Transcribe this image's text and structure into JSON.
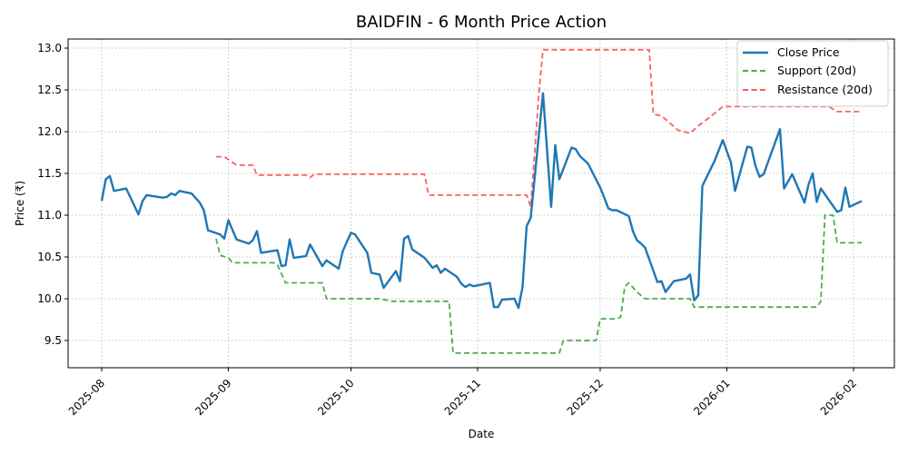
{
  "chart_data": {
    "type": "line",
    "title": "BAIDFIN - 6 Month Price Action",
    "xlabel": "Date",
    "ylabel": "Price (₹)",
    "ylim": [
      9.18,
      13.15
    ],
    "yticks": [
      9.5,
      10.0,
      10.5,
      11.0,
      11.5,
      12.0,
      12.5,
      13.0
    ],
    "ytick_labels": [
      "9.5",
      "10.0",
      "10.5",
      "11.0",
      "11.5",
      "12.0",
      "12.5",
      "13.0"
    ],
    "xtick_labels": [
      "2025-08",
      "2025-09",
      "2025-10",
      "2025-11",
      "2025-12",
      "2026-01",
      "2026-02"
    ],
    "grid": true,
    "legend_position": "upper right",
    "legend": [
      "Close Price",
      "Support (20d)",
      "Resistance (20d)"
    ],
    "series": [
      {
        "name": "Close Price",
        "color": "#1f77b4",
        "style": "solid",
        "points": [
          [
            "2025-08-01",
            11.17
          ],
          [
            "2025-08-02",
            11.43
          ],
          [
            "2025-08-03",
            11.47
          ],
          [
            "2025-08-04",
            11.29
          ],
          [
            "2025-08-07",
            11.32
          ],
          [
            "2025-08-10",
            11.01
          ],
          [
            "2025-08-11",
            11.17
          ],
          [
            "2025-08-12",
            11.24
          ],
          [
            "2025-08-16",
            11.21
          ],
          [
            "2025-08-17",
            11.22
          ],
          [
            "2025-08-18",
            11.26
          ],
          [
            "2025-08-19",
            11.24
          ],
          [
            "2025-08-20",
            11.29
          ],
          [
            "2025-08-23",
            11.26
          ],
          [
            "2025-08-25",
            11.15
          ],
          [
            "2025-08-26",
            11.06
          ],
          [
            "2025-08-27",
            10.82
          ],
          [
            "2025-08-30",
            10.77
          ],
          [
            "2025-08-31",
            10.72
          ],
          [
            "2025-09-01",
            10.94
          ],
          [
            "2025-09-03",
            10.71
          ],
          [
            "2025-09-06",
            10.66
          ],
          [
            "2025-09-07",
            10.7
          ],
          [
            "2025-09-08",
            10.81
          ],
          [
            "2025-09-09",
            10.55
          ],
          [
            "2025-09-13",
            10.58
          ],
          [
            "2025-09-14",
            10.39
          ],
          [
            "2025-09-15",
            10.4
          ],
          [
            "2025-09-16",
            10.71
          ],
          [
            "2025-09-17",
            10.49
          ],
          [
            "2025-09-20",
            10.51
          ],
          [
            "2025-09-21",
            10.65
          ],
          [
            "2025-09-24",
            10.39
          ],
          [
            "2025-09-25",
            10.46
          ],
          [
            "2025-09-28",
            10.36
          ],
          [
            "2025-09-29",
            10.57
          ],
          [
            "2025-10-01",
            10.79
          ],
          [
            "2025-10-02",
            10.77
          ],
          [
            "2025-10-05",
            10.55
          ],
          [
            "2025-10-06",
            10.31
          ],
          [
            "2025-10-08",
            10.29
          ],
          [
            "2025-10-09",
            10.13
          ],
          [
            "2025-10-12",
            10.33
          ],
          [
            "2025-10-13",
            10.21
          ],
          [
            "2025-10-14",
            10.72
          ],
          [
            "2025-10-15",
            10.75
          ],
          [
            "2025-10-16",
            10.59
          ],
          [
            "2025-10-19",
            10.49
          ],
          [
            "2025-10-20",
            10.43
          ],
          [
            "2025-10-21",
            10.37
          ],
          [
            "2025-10-22",
            10.4
          ],
          [
            "2025-10-23",
            10.31
          ],
          [
            "2025-10-24",
            10.36
          ],
          [
            "2025-10-27",
            10.26
          ],
          [
            "2025-10-28",
            10.18
          ],
          [
            "2025-10-29",
            10.14
          ],
          [
            "2025-10-30",
            10.17
          ],
          [
            "2025-10-31",
            10.15
          ],
          [
            "2025-11-02",
            10.17
          ],
          [
            "2025-11-04",
            10.19
          ],
          [
            "2025-11-05",
            9.9
          ],
          [
            "2025-11-06",
            9.9
          ],
          [
            "2025-11-07",
            9.99
          ],
          [
            "2025-11-10",
            10.0
          ],
          [
            "2025-11-11",
            9.89
          ],
          [
            "2025-11-12",
            10.14
          ],
          [
            "2025-11-13",
            10.87
          ],
          [
            "2025-11-14",
            10.97
          ],
          [
            "2025-11-17",
            12.46
          ],
          [
            "2025-11-19",
            11.1
          ],
          [
            "2025-11-20",
            11.84
          ],
          [
            "2025-11-21",
            11.43
          ],
          [
            "2025-11-24",
            11.81
          ],
          [
            "2025-11-25",
            11.79
          ],
          [
            "2025-11-26",
            11.71
          ],
          [
            "2025-11-28",
            11.62
          ],
          [
            "2025-12-01",
            11.33
          ],
          [
            "2025-12-02",
            11.21
          ],
          [
            "2025-12-03",
            11.08
          ],
          [
            "2025-12-04",
            11.06
          ],
          [
            "2025-12-05",
            11.06
          ],
          [
            "2025-12-08",
            10.99
          ],
          [
            "2025-12-09",
            10.81
          ],
          [
            "2025-12-10",
            10.7
          ],
          [
            "2025-12-11",
            10.66
          ],
          [
            "2025-12-12",
            10.61
          ],
          [
            "2025-12-15",
            10.2
          ],
          [
            "2025-12-16",
            10.21
          ],
          [
            "2025-12-17",
            10.08
          ],
          [
            "2025-12-19",
            10.21
          ],
          [
            "2025-12-22",
            10.24
          ],
          [
            "2025-12-23",
            10.29
          ],
          [
            "2025-12-24",
            9.98
          ],
          [
            "2025-12-25",
            10.04
          ],
          [
            "2025-12-26",
            11.35
          ],
          [
            "2025-12-29",
            11.65
          ],
          [
            "2025-12-31",
            11.9
          ],
          [
            "2026-01-02",
            11.63
          ],
          [
            "2026-01-03",
            11.29
          ],
          [
            "2026-01-06",
            11.82
          ],
          [
            "2026-01-07",
            11.81
          ],
          [
            "2026-01-08",
            11.59
          ],
          [
            "2026-01-09",
            11.46
          ],
          [
            "2026-01-10",
            11.49
          ],
          [
            "2026-01-14",
            12.03
          ],
          [
            "2026-01-15",
            11.32
          ],
          [
            "2026-01-17",
            11.49
          ],
          [
            "2026-01-20",
            11.15
          ],
          [
            "2026-01-21",
            11.37
          ],
          [
            "2026-01-22",
            11.5
          ],
          [
            "2026-01-23",
            11.16
          ],
          [
            "2026-01-24",
            11.32
          ],
          [
            "2026-01-28",
            11.04
          ],
          [
            "2026-01-29",
            11.06
          ],
          [
            "2026-01-30",
            11.33
          ],
          [
            "2026-01-31",
            11.1
          ],
          [
            "2026-02-03",
            11.17
          ]
        ]
      },
      {
        "name": "Support (20d)",
        "color": "#2ca02c",
        "style": "dashed",
        "points": [
          [
            "2025-08-29",
            10.72
          ],
          [
            "2025-08-30",
            10.52
          ],
          [
            "2025-09-01",
            10.49
          ],
          [
            "2025-09-02",
            10.43
          ],
          [
            "2025-09-12",
            10.43
          ],
          [
            "2025-09-13",
            10.41
          ],
          [
            "2025-09-15",
            10.19
          ],
          [
            "2025-09-24",
            10.19
          ],
          [
            "2025-09-25",
            10.0
          ],
          [
            "2025-10-08",
            10.0
          ],
          [
            "2025-10-11",
            9.97
          ],
          [
            "2025-10-25",
            9.97
          ],
          [
            "2025-10-26",
            9.35
          ],
          [
            "2025-11-21",
            9.35
          ],
          [
            "2025-11-22",
            9.5
          ],
          [
            "2025-11-30",
            9.5
          ],
          [
            "2025-12-01",
            9.76
          ],
          [
            "2025-12-05",
            9.76
          ],
          [
            "2025-12-06",
            9.78
          ],
          [
            "2025-12-07",
            10.14
          ],
          [
            "2025-12-08",
            10.19
          ],
          [
            "2025-12-10",
            10.08
          ],
          [
            "2025-12-12",
            10.0
          ],
          [
            "2025-12-23",
            10.0
          ],
          [
            "2025-12-24",
            9.9
          ],
          [
            "2026-01-23",
            9.9
          ],
          [
            "2026-01-24",
            9.97
          ],
          [
            "2026-01-25",
            11.0
          ],
          [
            "2026-01-27",
            11.0
          ],
          [
            "2026-01-28",
            10.67
          ],
          [
            "2026-02-03",
            10.67
          ]
        ]
      },
      {
        "name": "Resistance (20d)",
        "color": "#ff4444",
        "style": "dashed",
        "points": [
          [
            "2025-08-29",
            11.7
          ],
          [
            "2025-08-31",
            11.7
          ],
          [
            "2025-09-03",
            11.6
          ],
          [
            "2025-09-07",
            11.6
          ],
          [
            "2025-09-08",
            11.48
          ],
          [
            "2025-09-20",
            11.48
          ],
          [
            "2025-09-21",
            11.45
          ],
          [
            "2025-09-22",
            11.49
          ],
          [
            "2025-10-19",
            11.49
          ],
          [
            "2025-10-20",
            11.24
          ],
          [
            "2025-11-13",
            11.24
          ],
          [
            "2025-11-14",
            11.1
          ],
          [
            "2025-11-16",
            12.46
          ],
          [
            "2025-11-17",
            12.98
          ],
          [
            "2025-12-13",
            12.98
          ],
          [
            "2025-12-14",
            12.21
          ],
          [
            "2025-12-16",
            12.19
          ],
          [
            "2025-12-20",
            12.02
          ],
          [
            "2025-12-23",
            11.98
          ],
          [
            "2025-12-25",
            12.07
          ],
          [
            "2025-12-28",
            12.18
          ],
          [
            "2025-12-31",
            12.3
          ],
          [
            "2026-01-26",
            12.3
          ],
          [
            "2026-01-28",
            12.24
          ],
          [
            "2026-02-03",
            12.24
          ]
        ]
      }
    ]
  }
}
